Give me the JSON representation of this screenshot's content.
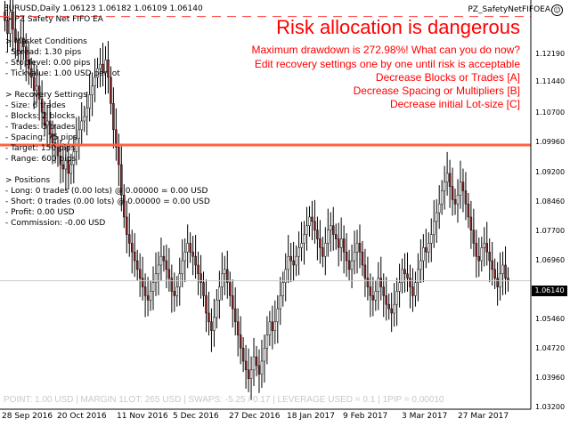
{
  "header": {
    "symbol_info": "EURUSD,Daily  1.06123 1.06182 1.06109 1.06140",
    "ea_title": "> PZ Safety Net FIFO EA",
    "ea_name": "PZ_SafetyNetFIFOEA",
    "smiley": "☺"
  },
  "warning": {
    "title": "Risk allocation is dangerous",
    "lines": [
      "Maximum drawdown is 272.98%! What can you do now?",
      "Edit recovery settings one by one until risk is acceptable",
      "Decrease Blocks or Trades [A]",
      "Decrease Spacing or Multipliers [B]",
      "Decrease initial Lot-size [C]"
    ]
  },
  "panel": {
    "market_title": "> Market Conditions",
    "spread": "- Spread: 1.30 pips",
    "stoplevel": "- Stoplevel: 0.00 pips",
    "tickvalue": "- Tickvalue: 1.00 USD per lot",
    "recovery_title": "> Recovery Settings",
    "size": "- Size: 6 trades",
    "blocks": "- Blocks: 2 blocks",
    "trades": "- Trades: 3 trades",
    "spacing": "- Spacing: 75 pips",
    "target": "- Target: 150 pips",
    "range": "- Range: 600 pips",
    "positions_title": "> Positions",
    "long": "- Long: 0 trades (0.00 lots) @ 0.00000 = 0.00 USD",
    "short": "- Short: 0 trades (0.00 lots) @ 0.00000 = 0.00 USD",
    "profit": "- Profit: 0.00 USD",
    "commission": "- Commission: -0.00 USD"
  },
  "bottom_info": "POINT: 1.00 USD | MARGIN 1LOT: 265 USD | SWAPS: -5.25 / 0.17 | LEVERAGE USED = 0.1 | 1PIP = 0.00010",
  "price_axis": {
    "labels": [
      "1.12190",
      "1.11440",
      "1.10700",
      "1.09960",
      "1.09200",
      "1.08460",
      "1.07700",
      "1.06960",
      "1.05460",
      "1.04720",
      "1.03960",
      "1.03200"
    ],
    "current": "1.06140"
  },
  "date_axis": [
    "28 Sep 2016",
    "20 Oct 2016",
    "11 Nov 2016",
    "5 Dec 2016",
    "27 Dec 2016",
    "18 Jan 2017",
    "9 Feb 2017",
    "3 Mar 2017",
    "27 Mar 2017"
  ],
  "colors": {
    "bull": "#ffffff",
    "bear": "#8b2323",
    "wick": "#000000",
    "warning": "#ff0000",
    "level_line": "#ff6040",
    "dashed": "#ff4040"
  },
  "chart_data": {
    "type": "candlestick",
    "ylim": [
      1.032,
      1.1257
    ],
    "levels": {
      "red_line": 1.0925,
      "dashed_line": 1.1219,
      "current": 1.0614
    },
    "closes": [
      1.121,
      1.118,
      1.123,
      1.119,
      1.116,
      1.114,
      1.117,
      1.115,
      1.112,
      1.11,
      1.108,
      1.105,
      1.106,
      1.103,
      1.1,
      1.097,
      1.098,
      1.095,
      1.093,
      1.092,
      1.09,
      1.088,
      1.087,
      1.089,
      1.086,
      1.088,
      1.091,
      1.094,
      1.096,
      1.098,
      1.099,
      1.101,
      1.104,
      1.106,
      1.108,
      1.11,
      1.111,
      1.109,
      1.112,
      1.108,
      1.102,
      1.096,
      1.092,
      1.088,
      1.081,
      1.076,
      1.072,
      1.07,
      1.068,
      1.066,
      1.064,
      1.062,
      1.06,
      1.058,
      1.057,
      1.059,
      1.061,
      1.063,
      1.065,
      1.067,
      1.066,
      1.064,
      1.062,
      1.059,
      1.058,
      1.06,
      1.063,
      1.066,
      1.068,
      1.07,
      1.068,
      1.067,
      1.065,
      1.063,
      1.061,
      1.058,
      1.054,
      1.052,
      1.05,
      1.053,
      1.057,
      1.06,
      1.063,
      1.064,
      1.061,
      1.058,
      1.055,
      1.052,
      1.049,
      1.046,
      1.043,
      1.041,
      1.039,
      1.041,
      1.044,
      1.042,
      1.04,
      1.043,
      1.046,
      1.049,
      1.052,
      1.05,
      1.052,
      1.055,
      1.058,
      1.061,
      1.064,
      1.067,
      1.066,
      1.065,
      1.067,
      1.069,
      1.07,
      1.072,
      1.074,
      1.076,
      1.075,
      1.073,
      1.071,
      1.069,
      1.067,
      1.07,
      1.073,
      1.074,
      1.072,
      1.071,
      1.069,
      1.071,
      1.068,
      1.066,
      1.064,
      1.066,
      1.068,
      1.07,
      1.068,
      1.065,
      1.062,
      1.06,
      1.058,
      1.057,
      1.059,
      1.062,
      1.06,
      1.058,
      1.056,
      1.055,
      1.054,
      1.056,
      1.059,
      1.061,
      1.064,
      1.063,
      1.062,
      1.06,
      1.058,
      1.061,
      1.064,
      1.066,
      1.069,
      1.068,
      1.07,
      1.072,
      1.075,
      1.077,
      1.079,
      1.082,
      1.084,
      1.086,
      1.083,
      1.08,
      1.079,
      1.081,
      1.084,
      1.082,
      1.079,
      1.076,
      1.073,
      1.07,
      1.067,
      1.066,
      1.069,
      1.07,
      1.068,
      1.066,
      1.064,
      1.062,
      1.06,
      1.063,
      1.065,
      1.062,
      1.0614
    ]
  }
}
